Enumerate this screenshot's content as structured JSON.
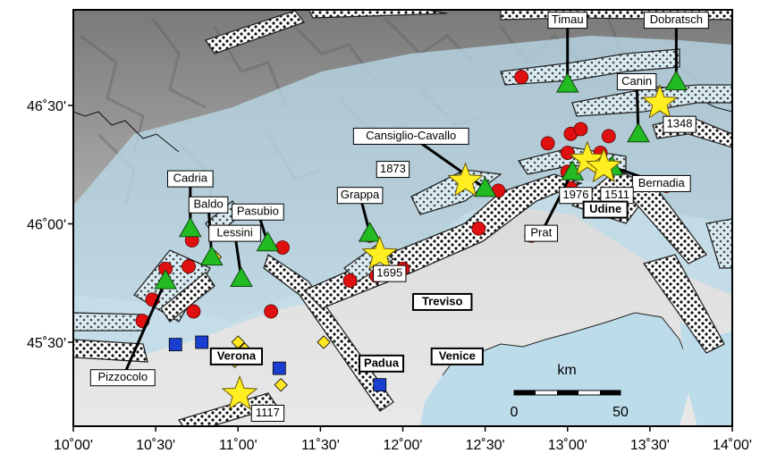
{
  "axes": {
    "x_ticks": [
      "10˚00'",
      "10˚30'",
      "11˚00'",
      "11˚30'",
      "12˚00'",
      "12˚30'",
      "13˚00'",
      "13˚30'",
      "14˚00'"
    ],
    "y_ticks": [
      "46˚30'",
      "46˚00'",
      "45˚30'"
    ]
  },
  "stations": [
    {
      "name": "Timau",
      "lon": 13.0,
      "lat": 46.59
    },
    {
      "name": "Dobratsch",
      "lon": 13.66,
      "lat": 46.6
    },
    {
      "name": "Canin",
      "lon": 13.43,
      "lat": 46.38
    },
    {
      "name": "Cansiglio-Cavallo",
      "lon": 12.5,
      "lat": 46.15
    },
    {
      "name": "Cadria",
      "lon": 10.71,
      "lat": 45.98
    },
    {
      "name": "Baldo",
      "lon": 10.84,
      "lat": 45.86
    },
    {
      "name": "Pasubio",
      "lon": 11.18,
      "lat": 45.92
    },
    {
      "name": "Lessini",
      "lon": 11.02,
      "lat": 45.77
    },
    {
      "name": "Grappa",
      "lon": 11.8,
      "lat": 45.96
    },
    {
      "name": "Pizzocolo",
      "lon": 10.6,
      "lat": 45.82
    },
    {
      "name": "Prat",
      "lon": 13.01,
      "lat": 46.27
    },
    {
      "name": "Bernadia",
      "lon": 13.25,
      "lat": 46.28
    }
  ],
  "earthquakes": [
    {
      "year": "1348",
      "lon": 13.56,
      "lat": 46.51
    },
    {
      "year": "1873",
      "lon": 12.38,
      "lat": 46.18
    },
    {
      "year": "1976",
      "lon": 13.12,
      "lat": 46.27
    },
    {
      "year": "1511",
      "lon": 13.22,
      "lat": 46.24
    },
    {
      "year": "1695",
      "lon": 11.86,
      "lat": 45.87
    },
    {
      "year": "1117",
      "lon": 11.01,
      "lat": 45.28
    }
  ],
  "cities": [
    {
      "name": "Udine",
      "lon": 13.23,
      "lat": 46.06
    },
    {
      "name": "Treviso",
      "lon": 12.24,
      "lat": 45.67
    },
    {
      "name": "Verona",
      "lon": 10.99,
      "lat": 45.44
    },
    {
      "name": "Padua",
      "lon": 11.87,
      "lat": 45.41
    },
    {
      "name": "Venice",
      "lon": 12.33,
      "lat": 45.44
    }
  ],
  "scale_bar": {
    "unit": "km",
    "min_label": "0",
    "max_label": "50"
  },
  "symbol_colors": {
    "station": "#22bb22",
    "epicenter": "#e01010",
    "historic_quake": "#ffee22",
    "gps_site": "#1a3fd0",
    "other_site": "#ffe822",
    "fault_zone": "#ffffff",
    "sea": "#b9dbe9"
  }
}
